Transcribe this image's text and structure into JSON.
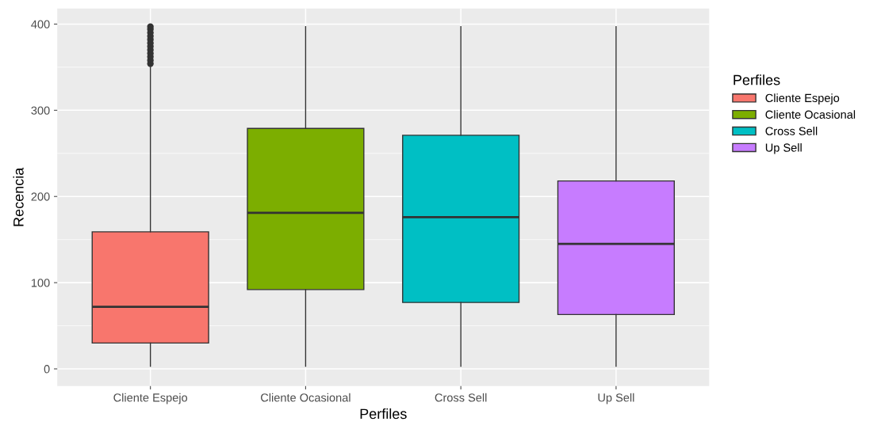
{
  "chart_data": {
    "type": "box",
    "xlabel": "Perfiles",
    "ylabel": "Recencia",
    "legend_title": "Perfiles",
    "legend": "right",
    "categories": [
      "Cliente Espejo",
      "Cliente Ocasional",
      "Cross Sell",
      "Up Sell"
    ],
    "series": [
      {
        "name": "Cliente Espejo",
        "color": "#f8766d",
        "boxes": [
          {
            "low": 3,
            "q1": 30,
            "median": 72,
            "q3": 159,
            "high": 350,
            "outliers": [
              354,
              358,
              362,
              366,
              370,
              374,
              378,
              382,
              386,
              390,
              394,
              397
            ]
          },
          null,
          null,
          null
        ]
      },
      {
        "name": "Cliente Ocasional",
        "color": "#7cae00",
        "boxes": [
          null,
          {
            "low": 3,
            "q1": 92,
            "median": 181,
            "q3": 279,
            "high": 397
          },
          null,
          null
        ]
      },
      {
        "name": "Cross Sell",
        "color": "#00bfc4",
        "boxes": [
          null,
          null,
          {
            "low": 3,
            "q1": 77,
            "median": 176,
            "q3": 271,
            "high": 397
          },
          null
        ]
      },
      {
        "name": "Up Sell",
        "color": "#c77cff",
        "boxes": [
          null,
          null,
          null,
          {
            "low": 3,
            "q1": 63,
            "median": 145,
            "q3": 218,
            "high": 397
          }
        ]
      }
    ],
    "ylim": [
      -20,
      418
    ],
    "yticks": [
      0,
      100,
      200,
      300,
      400
    ],
    "grid": true
  }
}
